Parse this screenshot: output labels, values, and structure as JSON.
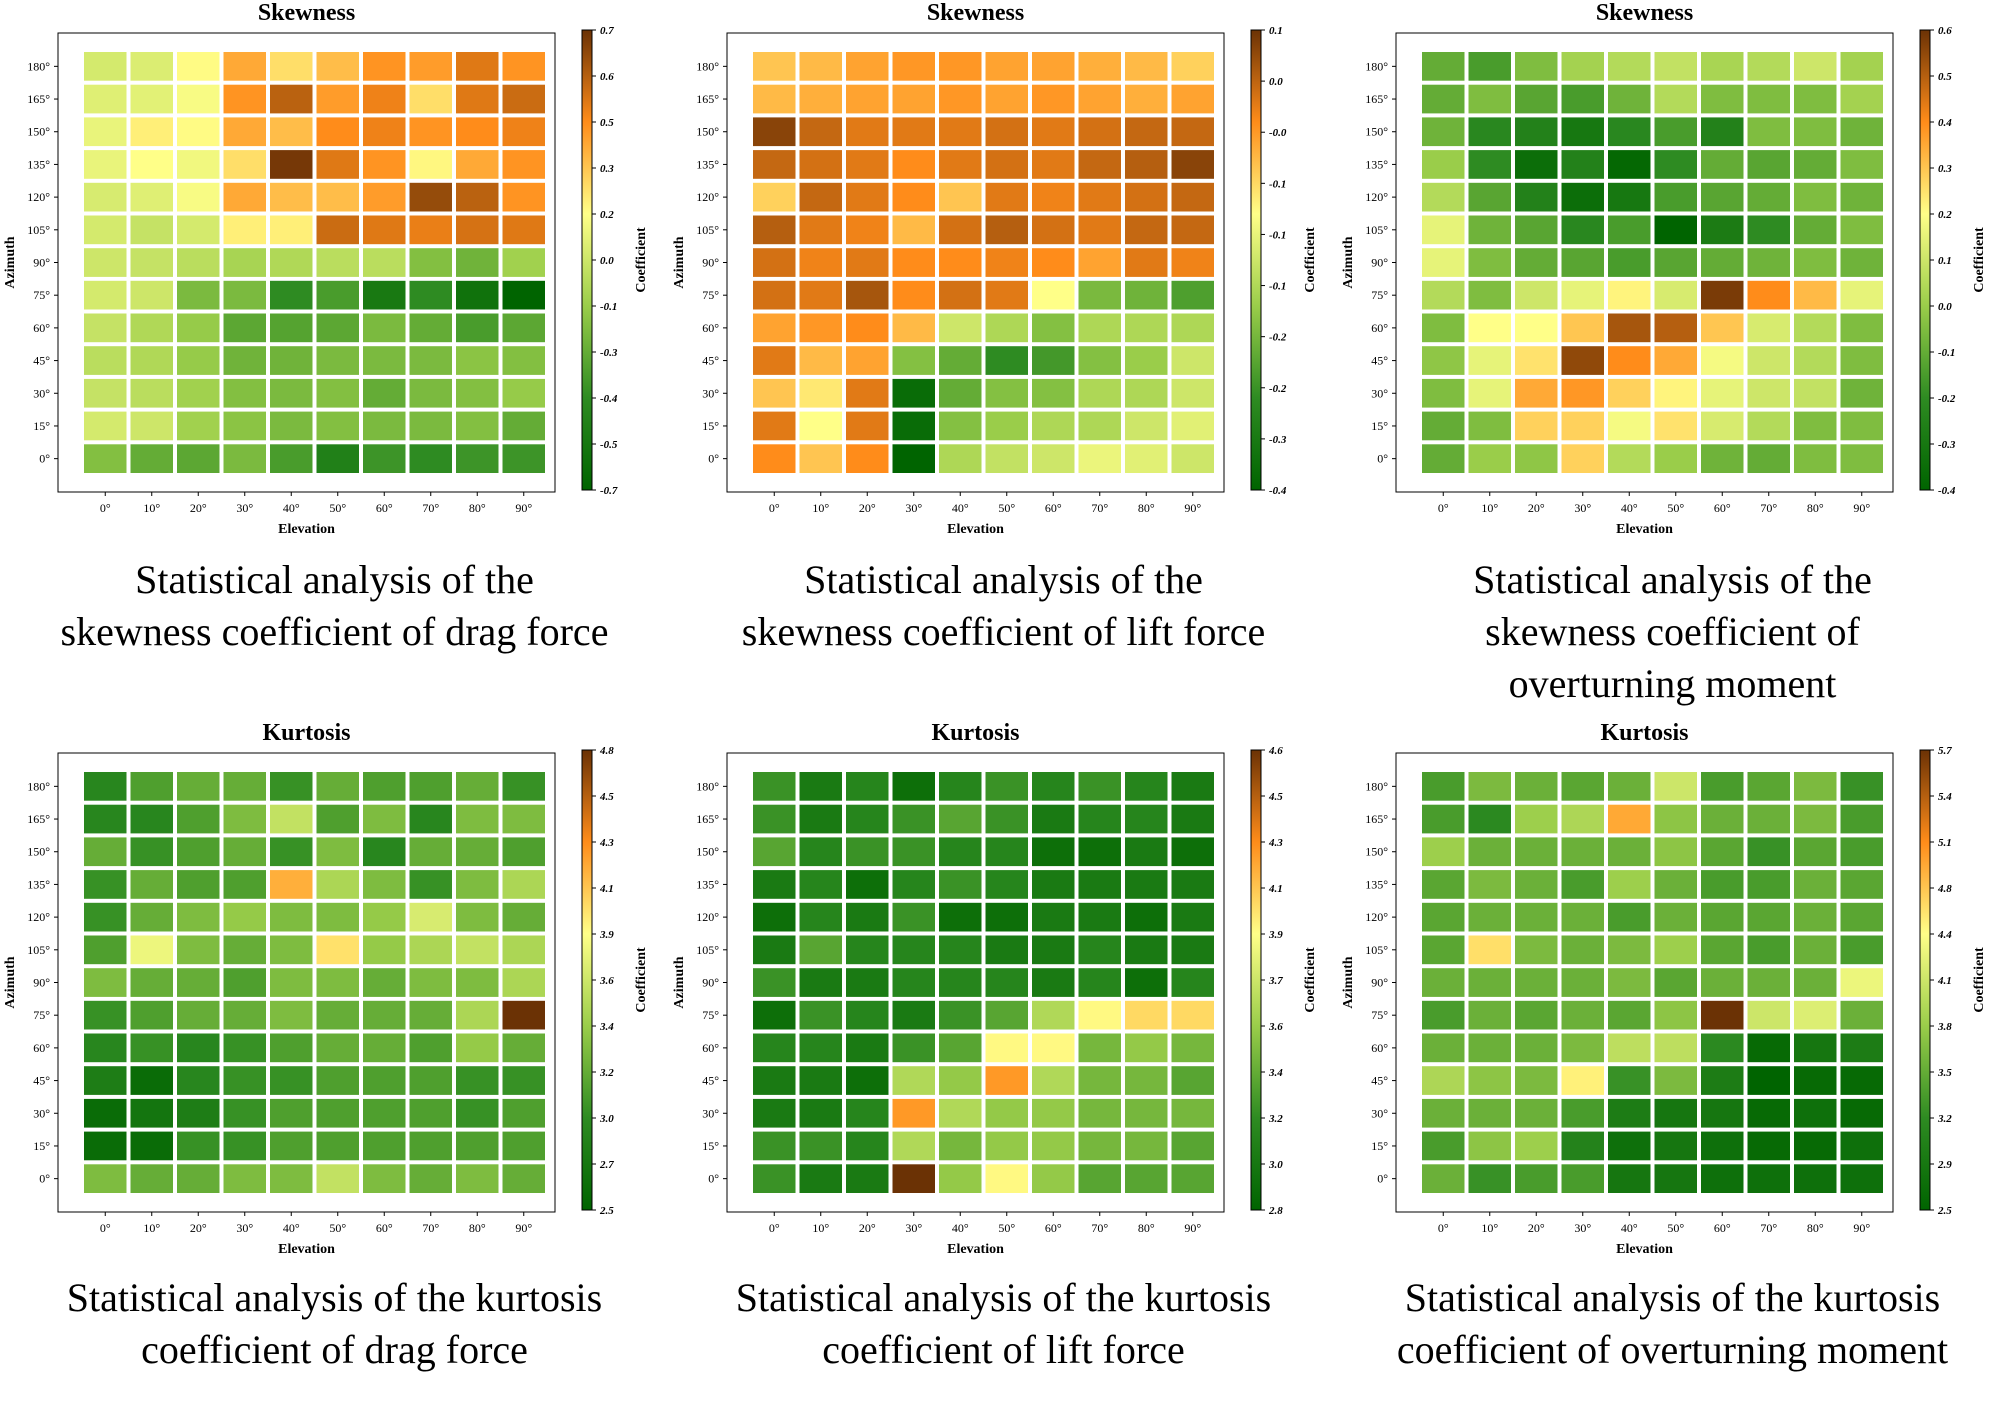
{
  "colors": {
    "scale": [
      "#006400",
      "#2e8b22",
      "#9acd4a",
      "#ffff88",
      "#ff8c1a",
      "#6b3205"
    ],
    "cell_gap": "#ffffff"
  },
  "chart_data": [
    {
      "type": "heatmap",
      "title": "Skewness",
      "xlabel": "Elevation",
      "ylabel": "Azimuth",
      "colorbar_label": "Coefficient",
      "x_ticks": [
        "0°",
        "10°",
        "20°",
        "30°",
        "40°",
        "50°",
        "60°",
        "70°",
        "80°",
        "90°"
      ],
      "y_ticks": [
        "180°",
        "165°",
        "150°",
        "135°",
        "120°",
        "105°",
        "90°",
        "75°",
        "60°",
        "45°",
        "30°",
        "15°",
        "0°"
      ],
      "colorbar_ticks": [
        "0.7",
        "0.6",
        "0.5",
        "0.3",
        "0.2",
        "0.0",
        "-0.1",
        "-0.3",
        "-0.4",
        "-0.5",
        "-0.7"
      ],
      "vmin": -0.7,
      "vmax": 0.7,
      "values": [
        [
          0.02,
          0.04,
          0.15,
          0.35,
          0.22,
          0.3,
          0.4,
          0.38,
          0.48,
          0.4
        ],
        [
          0.05,
          0.06,
          0.12,
          0.4,
          0.55,
          0.38,
          0.45,
          0.22,
          0.48,
          0.52
        ],
        [
          0.08,
          0.18,
          0.15,
          0.35,
          0.3,
          0.42,
          0.45,
          0.4,
          0.42,
          0.45
        ],
        [
          0.08,
          0.14,
          0.1,
          0.22,
          0.68,
          0.48,
          0.4,
          0.16,
          0.35,
          0.4
        ],
        [
          0.03,
          0.05,
          0.12,
          0.35,
          0.3,
          0.3,
          0.38,
          0.62,
          0.55,
          0.4
        ],
        [
          0.02,
          -0.02,
          0.02,
          0.18,
          0.18,
          0.52,
          0.48,
          0.46,
          0.5,
          0.48
        ],
        [
          0.0,
          -0.02,
          -0.05,
          -0.1,
          -0.08,
          -0.05,
          -0.05,
          -0.2,
          -0.25,
          -0.12
        ],
        [
          0.02,
          0.0,
          -0.22,
          -0.22,
          -0.42,
          -0.35,
          -0.55,
          -0.42,
          -0.6,
          -0.7
        ],
        [
          -0.02,
          -0.08,
          -0.15,
          -0.3,
          -0.32,
          -0.3,
          -0.22,
          -0.28,
          -0.35,
          -0.3
        ],
        [
          -0.05,
          -0.08,
          -0.15,
          -0.25,
          -0.25,
          -0.22,
          -0.22,
          -0.22,
          -0.18,
          -0.2
        ],
        [
          -0.02,
          -0.05,
          -0.12,
          -0.2,
          -0.22,
          -0.2,
          -0.28,
          -0.22,
          -0.2,
          -0.15
        ],
        [
          0.02,
          0.0,
          -0.12,
          -0.18,
          -0.22,
          -0.2,
          -0.22,
          -0.22,
          -0.2,
          -0.28
        ],
        [
          -0.2,
          -0.28,
          -0.3,
          -0.22,
          -0.35,
          -0.5,
          -0.38,
          -0.42,
          -0.38,
          -0.38
        ]
      ],
      "caption": "Statistical analysis of the\nskewness coefficient of drag force"
    },
    {
      "type": "heatmap",
      "title": "Skewness",
      "xlabel": "Elevation",
      "ylabel": "Azimuth",
      "colorbar_label": "Coefficient",
      "x_ticks": [
        "0°",
        "10°",
        "20°",
        "30°",
        "40°",
        "50°",
        "60°",
        "70°",
        "80°",
        "90°"
      ],
      "y_ticks": [
        "180°",
        "165°",
        "150°",
        "135°",
        "120°",
        "105°",
        "90°",
        "75°",
        "60°",
        "45°",
        "30°",
        "15°",
        "0°"
      ],
      "colorbar_ticks": [
        "0.1",
        "0.0",
        "-0.0",
        "-0.1",
        "-0.1",
        "-0.1",
        "-0.2",
        "-0.2",
        "-0.3",
        "-0.4"
      ],
      "vmin": -0.4,
      "vmax": 0.1,
      "values": [
        [
          -0.05,
          -0.04,
          -0.02,
          -0.01,
          -0.01,
          -0.02,
          -0.02,
          -0.03,
          -0.04,
          -0.06
        ],
        [
          -0.04,
          -0.03,
          -0.02,
          -0.02,
          -0.01,
          -0.02,
          -0.01,
          -0.02,
          -0.03,
          -0.02
        ],
        [
          0.08,
          0.04,
          0.02,
          0.02,
          0.02,
          0.03,
          0.02,
          0.03,
          0.04,
          0.04
        ],
        [
          0.04,
          0.03,
          0.02,
          0.0,
          0.02,
          0.03,
          0.02,
          0.04,
          0.05,
          0.08
        ],
        [
          -0.06,
          0.04,
          0.02,
          0.0,
          -0.05,
          0.02,
          0.01,
          0.02,
          0.03,
          0.04
        ],
        [
          0.05,
          0.02,
          0.01,
          -0.04,
          0.03,
          0.05,
          0.03,
          0.02,
          0.04,
          0.04
        ],
        [
          0.03,
          0.01,
          0.02,
          0.0,
          0.0,
          0.01,
          0.0,
          -0.02,
          0.02,
          0.01
        ],
        [
          0.03,
          0.02,
          0.06,
          0.0,
          0.03,
          0.02,
          -0.1,
          -0.23,
          -0.24,
          -0.27
        ],
        [
          -0.02,
          -0.01,
          0.0,
          -0.04,
          -0.15,
          -0.18,
          -0.22,
          -0.18,
          -0.18,
          -0.18
        ],
        [
          0.02,
          -0.04,
          -0.02,
          -0.22,
          -0.25,
          -0.3,
          -0.28,
          -0.22,
          -0.2,
          -0.15
        ],
        [
          -0.05,
          -0.08,
          0.02,
          -0.38,
          -0.25,
          -0.22,
          -0.22,
          -0.18,
          -0.18,
          -0.15
        ],
        [
          0.02,
          -0.1,
          0.02,
          -0.38,
          -0.22,
          -0.2,
          -0.18,
          -0.18,
          -0.15,
          -0.13
        ],
        [
          0.0,
          -0.05,
          0.0,
          -0.4,
          -0.18,
          -0.16,
          -0.15,
          -0.12,
          -0.13,
          -0.15
        ]
      ],
      "caption": "Statistical analysis of the\nskewness coefficient of lift force"
    },
    {
      "type": "heatmap",
      "title": "Skewness",
      "xlabel": "Elevation",
      "ylabel": "Azimuth",
      "colorbar_label": "Coefficient",
      "x_ticks": [
        "0°",
        "10°",
        "20°",
        "30°",
        "40°",
        "50°",
        "60°",
        "70°",
        "80°",
        "90°"
      ],
      "y_ticks": [
        "180°",
        "165°",
        "150°",
        "135°",
        "120°",
        "105°",
        "90°",
        "75°",
        "60°",
        "45°",
        "30°",
        "15°",
        "0°"
      ],
      "colorbar_ticks": [
        "0.6",
        "0.5",
        "0.4",
        "0.3",
        "0.2",
        "0.1",
        "0.0",
        "-0.1",
        "-0.2",
        "-0.3",
        "-0.4"
      ],
      "vmin": -0.4,
      "vmax": 0.6,
      "values": [
        [
          -0.1,
          -0.15,
          -0.05,
          0.02,
          0.05,
          0.08,
          0.03,
          0.05,
          0.1,
          0.02
        ],
        [
          -0.1,
          -0.05,
          -0.12,
          -0.15,
          -0.08,
          0.05,
          -0.05,
          -0.05,
          -0.05,
          0.02
        ],
        [
          -0.08,
          -0.22,
          -0.25,
          -0.3,
          -0.22,
          -0.15,
          -0.25,
          -0.05,
          -0.05,
          -0.08
        ],
        [
          0.0,
          -0.2,
          -0.35,
          -0.25,
          -0.38,
          -0.2,
          -0.1,
          -0.12,
          -0.1,
          -0.05
        ],
        [
          0.05,
          -0.12,
          -0.25,
          -0.35,
          -0.3,
          -0.15,
          -0.12,
          -0.1,
          -0.05,
          -0.08
        ],
        [
          0.15,
          -0.08,
          -0.12,
          -0.22,
          -0.15,
          -0.4,
          -0.28,
          -0.2,
          -0.1,
          -0.05
        ],
        [
          0.15,
          -0.05,
          -0.1,
          -0.12,
          -0.15,
          -0.12,
          -0.1,
          -0.08,
          -0.05,
          -0.08
        ],
        [
          0.05,
          -0.05,
          0.1,
          0.15,
          0.22,
          0.12,
          0.58,
          0.4,
          0.32,
          0.15
        ],
        [
          -0.05,
          0.2,
          0.2,
          0.3,
          0.52,
          0.5,
          0.3,
          0.12,
          0.05,
          -0.05
        ],
        [
          -0.02,
          0.15,
          0.25,
          0.55,
          0.4,
          0.35,
          0.18,
          0.1,
          0.05,
          -0.05
        ],
        [
          -0.05,
          0.15,
          0.35,
          0.38,
          0.28,
          0.22,
          0.15,
          0.1,
          0.08,
          -0.08
        ],
        [
          -0.1,
          -0.05,
          0.28,
          0.28,
          0.18,
          0.25,
          0.12,
          0.05,
          -0.05,
          -0.05
        ],
        [
          -0.1,
          0.0,
          -0.02,
          0.28,
          0.05,
          0.0,
          -0.08,
          -0.1,
          -0.05,
          -0.05
        ]
      ],
      "caption": "Statistical analysis of the\nskewness coefficient of\noverturning moment"
    },
    {
      "type": "heatmap",
      "title": "Kurtosis",
      "xlabel": "Elevation",
      "ylabel": "Azimuth",
      "colorbar_label": "Coefficient",
      "x_ticks": [
        "0°",
        "10°",
        "20°",
        "30°",
        "40°",
        "50°",
        "60°",
        "70°",
        "80°",
        "90°"
      ],
      "y_ticks": [
        "180°",
        "165°",
        "150°",
        "135°",
        "120°",
        "105°",
        "90°",
        "75°",
        "60°",
        "45°",
        "30°",
        "15°",
        "0°"
      ],
      "colorbar_ticks": [
        "4.8",
        "4.5",
        "4.3",
        "4.1",
        "3.9",
        "3.6",
        "3.4",
        "3.2",
        "3.0",
        "2.7",
        "2.5"
      ],
      "vmin": 2.5,
      "vmax": 4.8,
      "values": [
        [
          2.9,
          3.1,
          3.2,
          3.2,
          3.0,
          3.2,
          3.1,
          3.1,
          3.2,
          3.0
        ],
        [
          2.9,
          2.9,
          3.1,
          3.3,
          3.6,
          3.1,
          3.3,
          2.9,
          3.3,
          3.3
        ],
        [
          3.2,
          3.0,
          3.1,
          3.2,
          3.0,
          3.3,
          2.9,
          3.2,
          3.2,
          3.1
        ],
        [
          3.0,
          3.2,
          3.1,
          3.1,
          4.2,
          3.5,
          3.3,
          3.0,
          3.3,
          3.5
        ],
        [
          3.0,
          3.2,
          3.3,
          3.4,
          3.3,
          3.3,
          3.4,
          3.7,
          3.3,
          3.2
        ],
        [
          3.1,
          3.8,
          3.3,
          3.2,
          3.3,
          4.0,
          3.4,
          3.5,
          3.6,
          3.5
        ],
        [
          3.3,
          3.2,
          3.2,
          3.1,
          3.3,
          3.3,
          3.2,
          3.3,
          3.3,
          3.5
        ],
        [
          3.0,
          3.1,
          3.2,
          3.2,
          3.3,
          3.2,
          3.2,
          3.2,
          3.5,
          4.8
        ],
        [
          2.9,
          3.0,
          2.9,
          3.0,
          3.1,
          3.2,
          3.2,
          3.1,
          3.4,
          3.2
        ],
        [
          2.8,
          2.6,
          2.9,
          3.0,
          3.0,
          3.1,
          3.1,
          3.1,
          3.0,
          3.0
        ],
        [
          2.6,
          2.7,
          2.8,
          3.0,
          3.1,
          3.1,
          3.1,
          3.1,
          3.0,
          3.1
        ],
        [
          2.6,
          2.6,
          3.0,
          3.0,
          3.1,
          3.1,
          3.1,
          3.1,
          3.1,
          3.1
        ],
        [
          3.3,
          3.2,
          3.2,
          3.3,
          3.3,
          3.6,
          3.3,
          3.2,
          3.3,
          3.2
        ]
      ],
      "caption": "Statistical analysis of the kurtosis\ncoefficient of drag force"
    },
    {
      "type": "heatmap",
      "title": "Kurtosis",
      "xlabel": "Elevation",
      "ylabel": "Azimuth",
      "colorbar_label": "Coefficient",
      "x_ticks": [
        "0°",
        "10°",
        "20°",
        "30°",
        "40°",
        "50°",
        "60°",
        "70°",
        "80°",
        "90°"
      ],
      "y_ticks": [
        "180°",
        "165°",
        "150°",
        "135°",
        "120°",
        "105°",
        "90°",
        "75°",
        "60°",
        "45°",
        "30°",
        "15°",
        "0°"
      ],
      "colorbar_ticks": [
        "4.6",
        "4.5",
        "4.3",
        "4.1",
        "3.9",
        "3.7",
        "3.6",
        "3.4",
        "3.2",
        "3.0",
        "2.8"
      ],
      "vmin": 2.8,
      "vmax": 4.6,
      "values": [
        [
          3.2,
          3.0,
          3.1,
          2.9,
          3.1,
          3.2,
          3.1,
          3.2,
          3.1,
          3.0
        ],
        [
          3.2,
          3.0,
          3.1,
          3.2,
          3.3,
          3.2,
          3.0,
          3.1,
          3.1,
          3.0
        ],
        [
          3.3,
          3.1,
          3.2,
          3.2,
          3.1,
          3.1,
          2.9,
          2.9,
          3.0,
          2.9
        ],
        [
          3.0,
          3.1,
          2.9,
          3.1,
          3.2,
          3.1,
          3.0,
          3.0,
          3.0,
          3.0
        ],
        [
          2.9,
          3.1,
          3.0,
          3.2,
          2.9,
          2.9,
          3.0,
          3.0,
          2.9,
          3.0
        ],
        [
          3.0,
          3.3,
          3.1,
          3.1,
          3.1,
          3.0,
          3.0,
          3.1,
          3.0,
          3.0
        ],
        [
          3.2,
          3.0,
          3.0,
          3.1,
          3.1,
          3.1,
          3.0,
          3.1,
          2.9,
          3.1
        ],
        [
          2.9,
          3.2,
          3.1,
          3.0,
          3.2,
          3.3,
          3.6,
          3.9,
          4.0,
          4.0
        ],
        [
          3.1,
          3.1,
          3.0,
          3.2,
          3.3,
          3.9,
          3.9,
          3.4,
          3.5,
          3.4
        ],
        [
          3.0,
          3.0,
          2.9,
          3.6,
          3.5,
          4.2,
          3.6,
          3.4,
          3.4,
          3.3
        ],
        [
          3.0,
          3.0,
          3.1,
          4.2,
          3.6,
          3.5,
          3.5,
          3.4,
          3.4,
          3.4
        ],
        [
          3.2,
          3.2,
          3.1,
          3.6,
          3.4,
          3.5,
          3.5,
          3.4,
          3.4,
          3.3
        ],
        [
          3.2,
          3.0,
          3.0,
          4.6,
          3.5,
          3.9,
          3.5,
          3.3,
          3.3,
          3.3
        ]
      ],
      "caption": "Statistical analysis of the kurtosis\ncoefficient of lift force"
    },
    {
      "type": "heatmap",
      "title": "Kurtosis",
      "xlabel": "Elevation",
      "ylabel": "Azimuth",
      "colorbar_label": "Coefficient",
      "x_ticks": [
        "0°",
        "10°",
        "20°",
        "30°",
        "40°",
        "50°",
        "60°",
        "70°",
        "80°",
        "90°"
      ],
      "y_ticks": [
        "180°",
        "165°",
        "150°",
        "135°",
        "120°",
        "105°",
        "90°",
        "75°",
        "60°",
        "45°",
        "30°",
        "15°",
        "0°"
      ],
      "colorbar_ticks": [
        "5.7",
        "5.4",
        "5.1",
        "4.8",
        "4.4",
        "4.1",
        "3.8",
        "3.5",
        "3.2",
        "2.9",
        "2.5"
      ],
      "vmin": 2.5,
      "vmax": 5.7,
      "values": [
        [
          3.3,
          3.6,
          3.5,
          3.4,
          3.5,
          4.1,
          3.3,
          3.4,
          3.6,
          3.2
        ],
        [
          3.3,
          3.1,
          3.8,
          3.9,
          4.9,
          3.7,
          3.5,
          3.5,
          3.6,
          3.3
        ],
        [
          3.8,
          3.5,
          3.5,
          3.5,
          3.5,
          3.7,
          3.4,
          3.2,
          3.4,
          3.3
        ],
        [
          3.4,
          3.6,
          3.5,
          3.3,
          3.8,
          3.5,
          3.3,
          3.3,
          3.5,
          3.4
        ],
        [
          3.4,
          3.5,
          3.5,
          3.5,
          3.3,
          3.5,
          3.4,
          3.4,
          3.5,
          3.4
        ],
        [
          3.4,
          4.6,
          3.6,
          3.5,
          3.6,
          3.8,
          3.4,
          3.3,
          3.5,
          3.3
        ],
        [
          3.5,
          3.5,
          3.5,
          3.5,
          3.6,
          3.4,
          3.5,
          3.5,
          3.5,
          4.3
        ],
        [
          3.3,
          3.5,
          3.4,
          3.5,
          3.4,
          3.7,
          5.7,
          4.1,
          4.2,
          3.5
        ],
        [
          3.5,
          3.5,
          3.5,
          3.6,
          4.0,
          4.0,
          3.1,
          2.6,
          2.8,
          2.9
        ],
        [
          3.9,
          3.7,
          3.6,
          4.5,
          3.2,
          3.6,
          2.9,
          2.5,
          2.6,
          2.6
        ],
        [
          3.5,
          3.5,
          3.5,
          3.3,
          2.9,
          2.8,
          2.8,
          2.6,
          2.7,
          2.6
        ],
        [
          3.3,
          3.7,
          3.8,
          3.0,
          2.7,
          2.8,
          2.7,
          2.6,
          2.6,
          2.7
        ],
        [
          3.5,
          3.2,
          3.3,
          3.3,
          2.8,
          2.8,
          2.7,
          2.7,
          2.7,
          2.7
        ]
      ],
      "caption": "Statistical analysis of the kurtosis\ncoefficient of overturning moment"
    }
  ]
}
